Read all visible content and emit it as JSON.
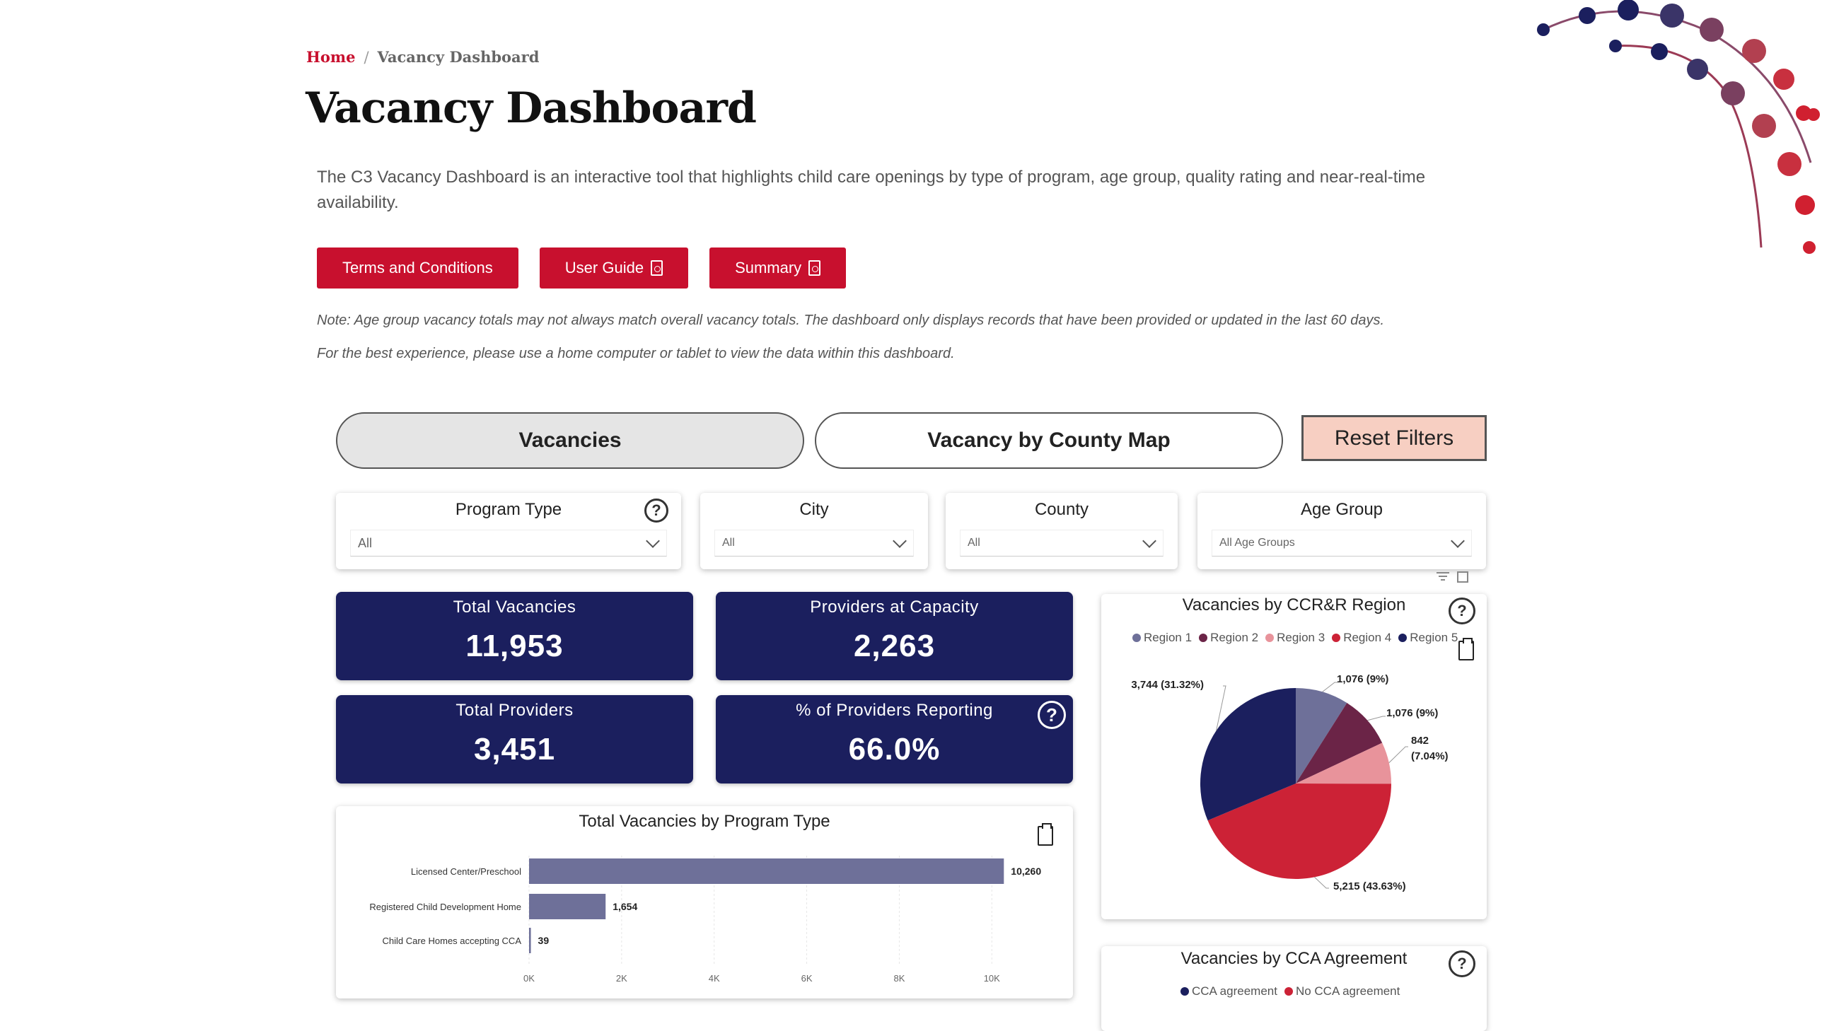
{
  "breadcrumb": {
    "home": "Home",
    "separator": "/",
    "current": "Vacancy Dashboard"
  },
  "page_title": "Vacancy Dashboard",
  "intro": "The C3 Vacancy Dashboard is an interactive tool that highlights child care openings by type of program, age group, quality rating and near-real-time availability.",
  "buttons": {
    "terms": "Terms and Conditions",
    "user_guide": "User Guide",
    "summary": "Summary"
  },
  "notes": {
    "age_note": "Note: Age group vacancy totals may not always match overall vacancy totals. The dashboard only displays records that have been provided or updated in the last 60 days.",
    "device_note": "For the best experience, please use a home computer or tablet to view the data within this dashboard."
  },
  "tabs": {
    "vacancies": "Vacancies",
    "county_map": "Vacancy by County Map",
    "reset": "Reset Filters"
  },
  "filters": {
    "program_type": {
      "title": "Program Type",
      "value": "All"
    },
    "city": {
      "title": "City",
      "value": "All"
    },
    "county": {
      "title": "County",
      "value": "All"
    },
    "age_group": {
      "title": "Age Group",
      "value": "All Age Groups"
    }
  },
  "kpis": {
    "total_vacancies": {
      "label": "Total Vacancies",
      "value": "11,953"
    },
    "providers_capacity": {
      "label": "Providers at Capacity",
      "value": "2,263"
    },
    "total_providers": {
      "label": "Total Providers",
      "value": "3,451"
    },
    "pct_reporting": {
      "label": "% of Providers Reporting",
      "value": "66.0%"
    }
  },
  "help_glyph": "?",
  "colors": {
    "accent_red": "#c8102e",
    "navy": "#1b1f5e",
    "bar": "#6e7099",
    "reset_bg": "#f7cfc2"
  },
  "chart_data": [
    {
      "type": "bar",
      "title": "Total Vacancies by Program Type",
      "orientation": "horizontal",
      "categories": [
        "Licensed Center/Preschool",
        "Registered Child Development Home",
        "Child Care Homes accepting CCA"
      ],
      "values": [
        10260,
        1654,
        39
      ],
      "value_labels": [
        "10,260",
        "1,654",
        "39"
      ],
      "xticks": [
        "0K",
        "2K",
        "4K",
        "6K",
        "8K",
        "10K"
      ],
      "xlim": [
        0,
        10500
      ],
      "grid": true
    },
    {
      "type": "pie",
      "title": "Vacancies by CCR&R Region",
      "series": [
        {
          "name": "Region 1",
          "value": 1076,
          "label": "1,076 (9%)",
          "color": "#6e7099"
        },
        {
          "name": "Region 2",
          "value": 1076,
          "label": "1,076 (9%)",
          "color": "#6b2447"
        },
        {
          "name": "Region 3",
          "value": 842,
          "label_line1": "842",
          "label_line2": "(7.04%)",
          "color": "#e8939b"
        },
        {
          "name": "Region 4",
          "value": 5215,
          "label": "5,215 (43.63%)",
          "color": "#cc2236"
        },
        {
          "name": "Region 5",
          "value": 3744,
          "label": "3,744 (31.32%)",
          "color": "#1b1f5e"
        }
      ],
      "legend_position": "top"
    },
    {
      "type": "pie",
      "title": "Vacancies by CCA Agreement",
      "series": [
        {
          "name": "CCA agreement",
          "color": "#1b1f5e"
        },
        {
          "name": "No CCA agreement",
          "color": "#cc2236"
        }
      ],
      "legend_position": "top"
    }
  ]
}
